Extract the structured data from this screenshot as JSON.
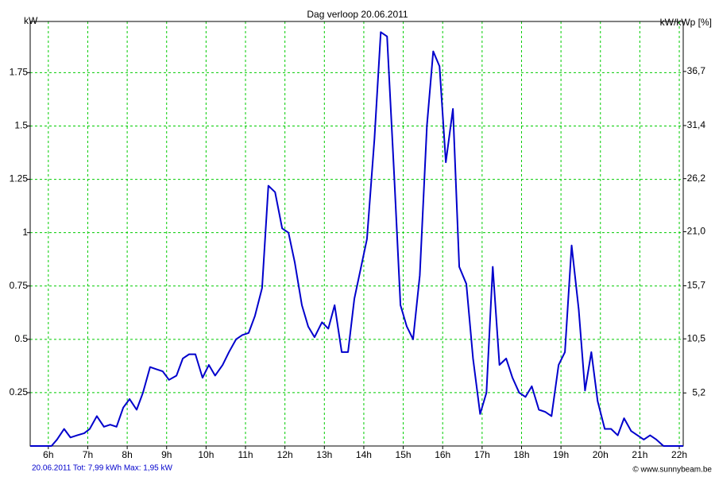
{
  "chart_data": {
    "type": "line",
    "title": "Dag  verloop 20.06.2011",
    "y_label": "kW",
    "y2_label": "kW/kWp [%]",
    "footer_left": "20.06.2011 Tot: 7,99 kWh Max: 1,95 kW",
    "footer_right": "© www.sunnybeam.be",
    "color": "#0000cc",
    "grid": true,
    "grid_color": "#00cc00",
    "x": [
      5.54,
      6.08,
      6.22,
      6.4,
      6.56,
      6.73,
      6.91,
      7.05,
      7.23,
      7.41,
      7.57,
      7.73,
      7.9,
      8.06,
      8.24,
      8.4,
      8.58,
      8.74,
      8.9,
      9.06,
      9.25,
      9.41,
      9.57,
      9.73,
      9.91,
      10.07,
      10.23,
      10.42,
      10.58,
      10.76,
      10.92,
      11.08,
      11.24,
      11.42,
      11.58,
      11.75,
      11.93,
      12.09,
      12.25,
      12.43,
      12.59,
      12.75,
      12.94,
      13.1,
      13.26,
      13.44,
      13.6,
      13.76,
      13.92,
      14.08,
      14.27,
      14.43,
      14.59,
      14.77,
      14.93,
      15.09,
      15.25,
      15.42,
      15.6,
      15.76,
      15.92,
      16.08,
      16.26,
      16.42,
      16.6,
      16.77,
      16.95,
      17.11,
      17.27,
      17.44,
      17.61,
      17.77,
      17.94,
      18.1,
      18.26,
      18.44,
      18.6,
      18.76,
      18.94,
      19.1,
      19.27,
      19.45,
      19.61,
      19.77,
      19.93,
      20.11,
      20.27,
      20.44,
      20.6,
      20.78,
      20.94,
      21.1,
      21.26,
      21.42,
      21.6,
      22.1
    ],
    "values": [
      0,
      0,
      0.03,
      0.08,
      0.04,
      0.05,
      0.06,
      0.08,
      0.14,
      0.09,
      0.1,
      0.09,
      0.18,
      0.22,
      0.17,
      0.25,
      0.37,
      0.36,
      0.35,
      0.31,
      0.33,
      0.41,
      0.43,
      0.43,
      0.32,
      0.38,
      0.33,
      0.38,
      0.44,
      0.5,
      0.52,
      0.53,
      0.61,
      0.74,
      1.22,
      1.19,
      1.02,
      1.0,
      0.86,
      0.66,
      0.56,
      0.51,
      0.58,
      0.55,
      0.66,
      0.44,
      0.44,
      0.69,
      0.83,
      0.97,
      1.44,
      1.94,
      1.92,
      1.27,
      0.66,
      0.56,
      0.5,
      0.8,
      1.5,
      1.85,
      1.78,
      1.33,
      1.58,
      0.84,
      0.76,
      0.41,
      0.15,
      0.25,
      0.84,
      0.38,
      0.41,
      0.32,
      0.25,
      0.23,
      0.28,
      0.17,
      0.16,
      0.14,
      0.38,
      0.44,
      0.94,
      0.64,
      0.26,
      0.44,
      0.21,
      0.08,
      0.08,
      0.05,
      0.13,
      0.07,
      0.05,
      0.03,
      0.05,
      0.03,
      0,
      0
    ],
    "xlim": [
      5.54,
      22.1
    ],
    "xticks": [
      {
        "value": 6,
        "label": "6h"
      },
      {
        "value": 7,
        "label": "7h"
      },
      {
        "value": 8,
        "label": "8h"
      },
      {
        "value": 9,
        "label": "9h"
      },
      {
        "value": 10,
        "label": "10h"
      },
      {
        "value": 11,
        "label": "11h"
      },
      {
        "value": 12,
        "label": "12h"
      },
      {
        "value": 13,
        "label": "13h"
      },
      {
        "value": 14,
        "label": "14h"
      },
      {
        "value": 15,
        "label": "15h"
      },
      {
        "value": 16,
        "label": "16h"
      },
      {
        "value": 17,
        "label": "17h"
      },
      {
        "value": 18,
        "label": "18h"
      },
      {
        "value": 19,
        "label": "19h"
      },
      {
        "value": 20,
        "label": "20h"
      },
      {
        "value": 21,
        "label": "21h"
      },
      {
        "value": 22,
        "label": "22h"
      }
    ],
    "ylim": [
      0,
      1.99
    ],
    "yticks": [
      0.25,
      0.5,
      0.75,
      1,
      1.25,
      1.5,
      1.75
    ],
    "y2lim": [
      0,
      41.6
    ],
    "y2ticks": [
      {
        "value": 5.2,
        "label": "5,2"
      },
      {
        "value": 10.5,
        "label": "10,5"
      },
      {
        "value": 15.7,
        "label": "15,7"
      },
      {
        "value": 21.0,
        "label": "21,0"
      },
      {
        "value": 26.2,
        "label": "26,2"
      },
      {
        "value": 31.4,
        "label": "31,4"
      },
      {
        "value": 36.7,
        "label": "36,7"
      }
    ]
  }
}
